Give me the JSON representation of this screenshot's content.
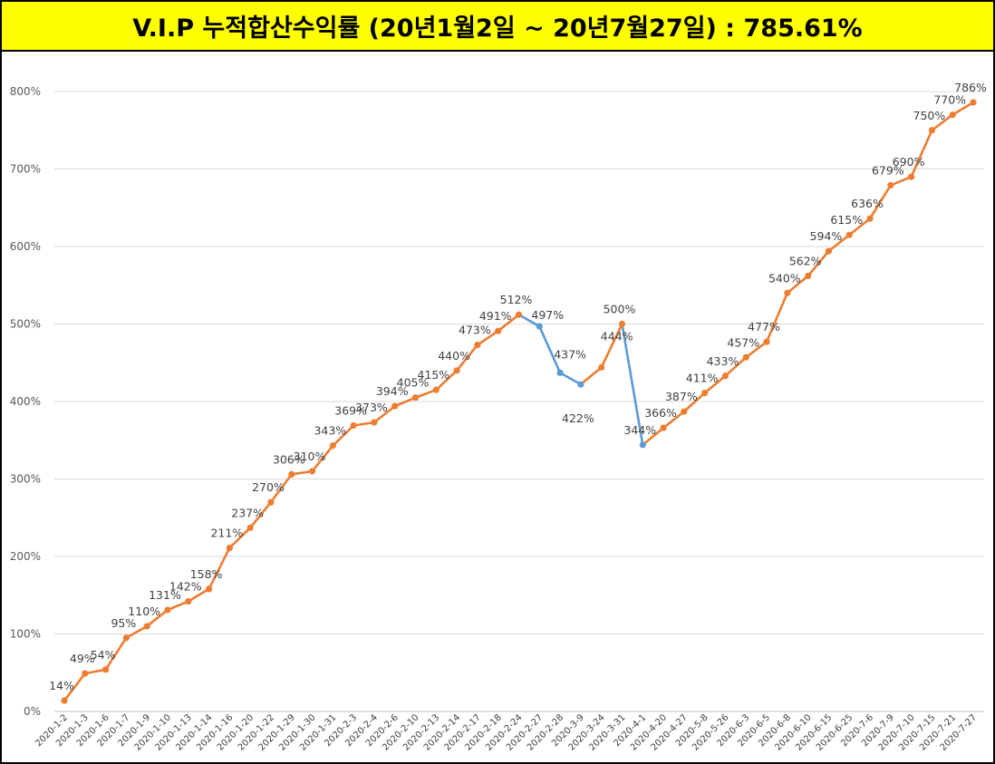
{
  "title": "V.I.P 누적합산수익률 (20년1월2일 ~ 20년7월27일) : 785.61%",
  "colors": {
    "title_bg": "#ffff00",
    "up_line": "#ed7d31",
    "down_line": "#5b9bd5",
    "grid": "#d9d9d9"
  },
  "chart_data": {
    "type": "line",
    "title": "V.I.P 누적합산수익률 (20년1월2일 ~ 20년7월27일) : 785.61%",
    "xlabel": "",
    "ylabel": "",
    "ylim": [
      0,
      800
    ],
    "yticks": [
      0,
      100,
      200,
      300,
      400,
      500,
      600,
      700,
      800
    ],
    "ytick_labels": [
      "0%",
      "100%",
      "200%",
      "300%",
      "400%",
      "500%",
      "600%",
      "700%",
      "800%"
    ],
    "grid": true,
    "legend": "none",
    "categories": [
      "2020-1-2",
      "2020-1-3",
      "2020-1-6",
      "2020-1-7",
      "2020-1-9",
      "2020-1-10",
      "2020-1-13",
      "2020-1-14",
      "2020-1-16",
      "2020-1-20",
      "2020-1-22",
      "2020-1-29",
      "2020-1-30",
      "2020-1-31",
      "2020-2-3",
      "2020-2-4",
      "2020-2-6",
      "2020-2-10",
      "2020-2-13",
      "2020-2-14",
      "2020-2-17",
      "2020-2-18",
      "2020-2-24",
      "2020-2-27",
      "2020-2-28",
      "2020-3-9",
      "2020-3-24",
      "2020-3-31",
      "2020-4-1",
      "2020-4-20",
      "2020-4-27",
      "2020-5-8",
      "2020-5-26",
      "2020-6-3",
      "2020-6-5",
      "2020-6-8",
      "2020-6-10",
      "2020-6-15",
      "2020-6-25",
      "2020-7-6",
      "2020-7-9",
      "2020-7-10",
      "2020-7-15",
      "2020-7-21",
      "2020-7-27"
    ],
    "values": [
      14,
      49,
      54,
      95,
      110,
      131,
      142,
      158,
      211,
      237,
      270,
      306,
      310,
      343,
      369,
      373,
      394,
      405,
      415,
      440,
      473,
      491,
      512,
      497,
      437,
      422,
      444,
      500,
      344,
      366,
      387,
      411,
      433,
      457,
      477,
      540,
      562,
      594,
      615,
      636,
      679,
      690,
      750,
      770,
      786
    ],
    "labels": [
      "14%",
      "49%",
      "54%",
      "95%",
      "110%",
      "131%",
      "142%",
      "158%",
      "211%",
      "237%",
      "270%",
      "306%",
      "310%",
      "343%",
      "369%",
      "373%",
      "394%",
      "405%",
      "415%",
      "440%",
      "473%",
      "491%",
      "512%",
      "497%",
      "437%",
      "422%",
      "444%",
      "500%",
      "344%",
      "366%",
      "387%",
      "411%",
      "433%",
      "457%",
      "477%",
      "540%",
      "562%",
      "594%",
      "615%",
      "636%",
      "679%",
      "690%",
      "750%",
      "770%",
      "786%"
    ]
  }
}
